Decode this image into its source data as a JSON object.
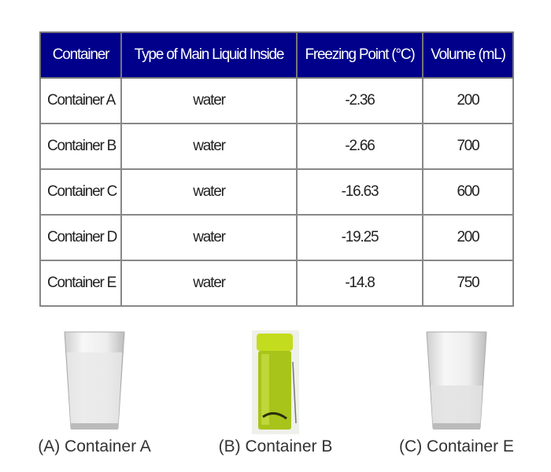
{
  "table": {
    "header": [
      "Container",
      "Type of Main Liquid Inside",
      "Freezing Point (°C)",
      "Volume (mL)"
    ],
    "rows": [
      [
        "Container A",
        "water",
        "-2.36",
        "200"
      ],
      [
        "Container B",
        "water",
        "-2.66",
        "700"
      ],
      [
        "Container C",
        "water",
        "-16.63",
        "600"
      ],
      [
        "Container D",
        "water",
        "-19.25",
        "200"
      ],
      [
        "Container E",
        "water",
        "-14.8",
        "750"
      ]
    ]
  },
  "options": [
    "(A) Container A",
    "(B) Container B",
    "(C) Container E"
  ]
}
